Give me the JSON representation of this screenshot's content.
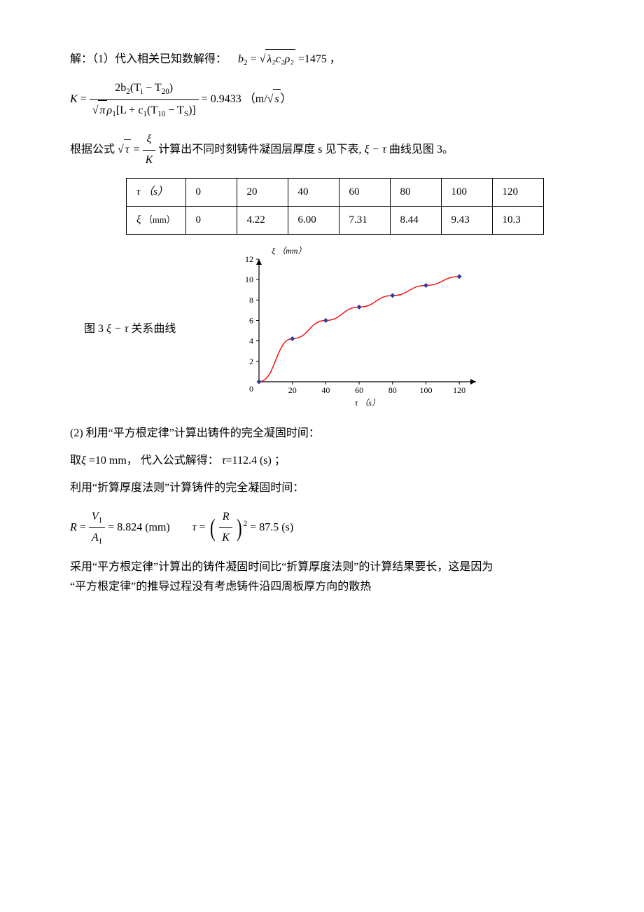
{
  "p1_prefix": "解：（1）代入相关已知数解得：",
  "p1_eq_lhs": "b",
  "p1_eq_sub": "2",
  "p1_eq_mid": " = ",
  "p1_sqrt_body": "λ₂c₂ρ₂",
  "p1_eq_result": " =1475 ，",
  "k_lhs": "K",
  "k_eq": " = ",
  "k_num_prefix": "2b",
  "k_num_b_sub": "2",
  "k_num_paren": "(T",
  "k_num_Ti_sub": "i",
  "k_num_minus": " − T",
  "k_num_T20_sub": "20",
  "k_num_close": ")",
  "k_den_sqrtpi": "π",
  "k_den_rho": "ρ",
  "k_den_rho_sub": "1",
  "k_den_bracket_open": "[L + c",
  "k_den_c_sub": "1",
  "k_den_paren": "(T",
  "k_den_T10_sub": "10",
  "k_den_minus": " − T",
  "k_den_TS_sub": "S",
  "k_den_close": ")]",
  "k_result_prefix": " = 0.9433 （m/",
  "k_result_sqrt": "s",
  "k_result_suffix": "）",
  "p3_prefix": "根据公式",
  "p3_sqrt_tau": "τ",
  "p3_frac_num": "ξ",
  "p3_frac_den": "K",
  "p3_suffix": "计算出不同时刻铸件凝固层厚度 s 见下表,",
  "p3_xi_tau": "ξ − τ",
  "p3_end": " 曲线见图 3。",
  "table": {
    "row1_label": "τ （s）",
    "row1": [
      "0",
      "20",
      "40",
      "60",
      "80",
      "100",
      "120"
    ],
    "row2_label_sym": "ξ",
    "row2_label_unit": "（mm）",
    "row2": [
      "0",
      "4.22",
      "6.00",
      "7.31",
      "8.44",
      "9.43",
      "10.3"
    ]
  },
  "chart": {
    "caption_prefix": "图 3 ",
    "caption_var": "ξ − τ",
    "caption_suffix": " 关系曲线",
    "ylabel": "ξ （mm）",
    "xlabel": "τ （s）",
    "x_ticks": [
      0,
      20,
      40,
      60,
      80,
      100,
      120
    ],
    "y_ticks": [
      0,
      2,
      4,
      6,
      8,
      10,
      12
    ],
    "xlim": [
      0,
      130
    ],
    "ylim": [
      0,
      12
    ],
    "points_x": [
      0,
      20,
      40,
      60,
      80,
      100,
      120
    ],
    "points_y": [
      0,
      4.22,
      6.0,
      7.31,
      8.44,
      9.43,
      10.3
    ],
    "line_color": "#ff0000",
    "marker_color": "#2a3aa0",
    "axis_color": "#000000",
    "background": "#ffffff",
    "marker_size": 3.5,
    "line_width": 1.4,
    "axis_width": 1.2,
    "font_size": 12
  },
  "p4": "(2) 利用“平方根定律”计算出铸件的完全凝固时间：",
  "p5_prefix": "取",
  "p5_xi": "ξ",
  "p5_mid": " =10 mm， 代入公式解得：  ",
  "p5_tau": "τ",
  "p5_result": "=112.4 (s) ；",
  "p6": "利用“折算厚度法则”计算铸件的完全凝固时间：",
  "r_lhs": "R",
  "r_eq": " = ",
  "r_num": "V",
  "r_num_sub": "1",
  "r_den": "A",
  "r_den_sub": "1",
  "r_result": " = 8.824 (mm)",
  "tau_lhs": "τ",
  "tau_eq": " = ",
  "tau_frac_num": "R",
  "tau_frac_den": "K",
  "tau_exp": "2",
  "tau_result": " = 87.5 (s)",
  "p7a": "采用“平方根定律”计算出的铸件凝固时间比“折算厚度法则”的计算结果要长，这是因为",
  "p7b": "“平方根定律”的推导过程没有考虑铸件沿四周板厚方向的散热"
}
